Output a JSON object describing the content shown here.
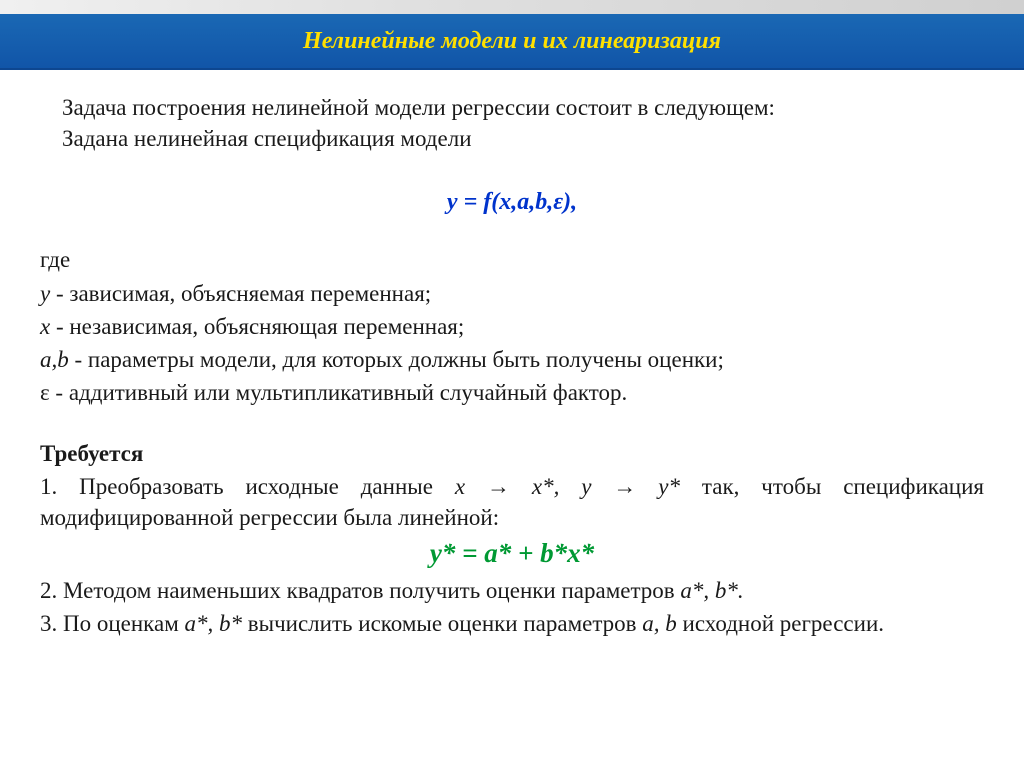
{
  "title": "Нелинейные модели и их линеаризация",
  "intro": {
    "line1": "Задача построения нелинейной модели регрессии состоит в следующем:",
    "line2": "Задана нелинейная спецификация модели"
  },
  "formula1": "y = f(x,a,b,ε),",
  "where": "где",
  "defs": {
    "y": " - зависимая, объясняемая переменная;",
    "x": " - независимая, объясняющая переменная;",
    "ab": " - параметры модели, для которых должны быть получены оценки;",
    "eps": " - аддитивный или мультипликативный случайный фактор."
  },
  "vars": {
    "y": "y",
    "x": "x",
    "ab": "a,b",
    "eps": "ε"
  },
  "required": "Требуется",
  "req1_pre": "1. Преобразовать исходные данные ",
  "req1_trans": "x → x*, y → y*",
  "req1_post": " так, чтобы спецификация модифицированной регрессии была линейной:",
  "formula2": "y* = a* + b*x*",
  "req2": "2. Методом наименьших квадратов получить оценки параметров ",
  "req2_params": "a*, b*.",
  "req3_a": "3. По оценкам ",
  "req3_b": "a*, b*",
  "req3_c": " вычислить искомые оценки параметров ",
  "req3_d": "a, b",
  "req3_e": " исходной регрессии.",
  "colors": {
    "header_bg": "#1155a8",
    "title_color": "#ffe000",
    "formula_blue": "#0033cc",
    "formula_green": "#009933",
    "text": "#1a1a1a"
  }
}
